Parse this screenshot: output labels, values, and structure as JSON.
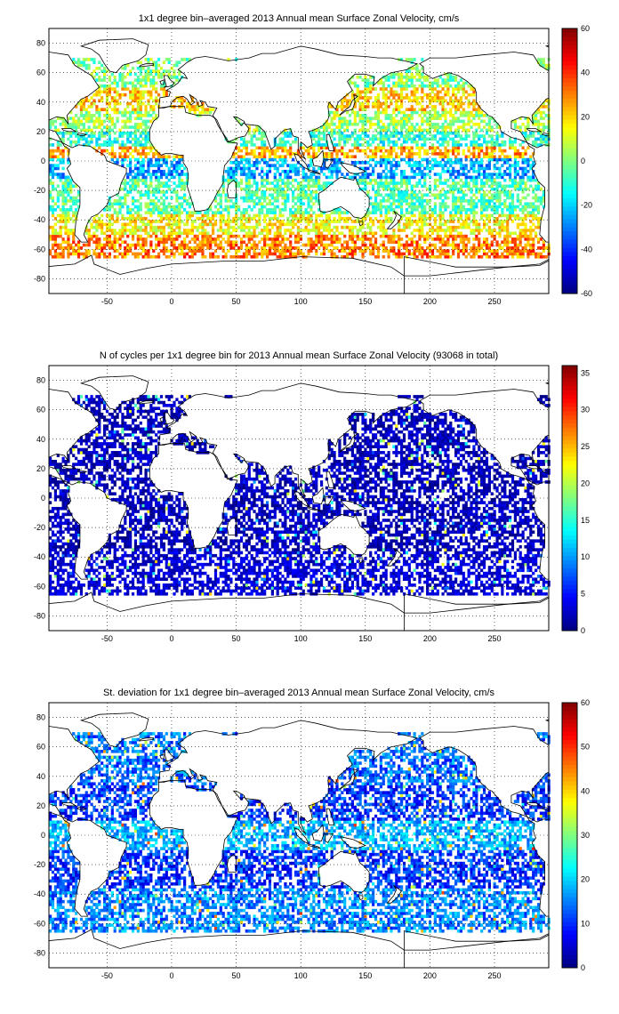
{
  "colors": {
    "land": "#ffffff",
    "coast": "#000000",
    "frame": "#000000",
    "grid": "#000000",
    "colormap": "jet"
  },
  "chart_data": [
    {
      "type": "heatmap",
      "title": "1x1 degree bin–averaged 2013 Annual mean Surface Zonal Velocity, cm/s",
      "xlabel": "",
      "ylabel": "",
      "xlim": [
        -95,
        292
      ],
      "ylim": [
        -90,
        90
      ],
      "xticks": [
        "-50",
        "0",
        "50",
        "100",
        "150",
        "200",
        "250"
      ],
      "xtick_values": [
        -50,
        0,
        50,
        100,
        150,
        200,
        250
      ],
      "yticks": [
        "80",
        "60",
        "40",
        "20",
        "0",
        "-20",
        "-40",
        "-60",
        "-80"
      ],
      "ytick_values": [
        80,
        60,
        40,
        20,
        0,
        -20,
        -40,
        -60,
        -80
      ],
      "grid": "dotted",
      "colorbar": {
        "range": [
          -60,
          60
        ],
        "ticks": [
          "60",
          "40",
          "20",
          "0",
          "-20",
          "-40",
          "-60"
        ],
        "tick_values": [
          60,
          40,
          20,
          0,
          -20,
          -40,
          -60
        ]
      },
      "value_bands": [
        {
          "lat": [
            -65,
            -50
          ],
          "typical": 30
        },
        {
          "lat": [
            -50,
            -35
          ],
          "typical": 15
        },
        {
          "lat": [
            -35,
            -12
          ],
          "typical": -5
        },
        {
          "lat": [
            -12,
            3
          ],
          "typical": -25
        },
        {
          "lat": [
            3,
            10
          ],
          "typical": 25
        },
        {
          "lat": [
            10,
            20
          ],
          "typical": -10
        },
        {
          "lat": [
            20,
            35
          ],
          "typical": 5
        },
        {
          "lat": [
            35,
            50
          ],
          "typical": 20
        },
        {
          "lat": [
            50,
            70
          ],
          "typical": 0
        }
      ]
    },
    {
      "type": "heatmap",
      "title": "N of cycles per 1x1 degree bin for 2013 Annual mean Surface Zonal Velocity (93068 in total)",
      "xlabel": "",
      "ylabel": "",
      "xlim": [
        -95,
        292
      ],
      "ylim": [
        -90,
        90
      ],
      "xticks": [
        "-50",
        "0",
        "50",
        "100",
        "150",
        "200",
        "250"
      ],
      "xtick_values": [
        -50,
        0,
        50,
        100,
        150,
        200,
        250
      ],
      "yticks": [
        "80",
        "60",
        "40",
        "20",
        "0",
        "-20",
        "-40",
        "-60",
        "-80"
      ],
      "ytick_values": [
        80,
        60,
        40,
        20,
        0,
        -20,
        -40,
        -60,
        -80
      ],
      "grid": "dotted",
      "colorbar": {
        "range": [
          0,
          36
        ],
        "ticks": [
          "35",
          "30",
          "25",
          "20",
          "15",
          "10",
          "5",
          "0"
        ],
        "tick_values": [
          35,
          30,
          25,
          20,
          15,
          10,
          5,
          0
        ]
      },
      "total_cycles": 93068,
      "value_bands": [
        {
          "lat": [
            -65,
            -35
          ],
          "typical": 3
        },
        {
          "lat": [
            -35,
            35
          ],
          "typical": 2
        },
        {
          "lat": [
            35,
            70
          ],
          "typical": 2
        }
      ]
    },
    {
      "type": "heatmap",
      "title": "St. deviation for 1x1 degree bin–averaged 2013 Annual mean Surface Zonal Velocity, cm/s",
      "xlabel": "",
      "ylabel": "",
      "xlim": [
        -95,
        292
      ],
      "ylim": [
        -90,
        90
      ],
      "xticks": [
        "-50",
        "0",
        "50",
        "100",
        "150",
        "200",
        "250"
      ],
      "xtick_values": [
        -50,
        0,
        50,
        100,
        150,
        200,
        250
      ],
      "yticks": [
        "80",
        "60",
        "40",
        "20",
        "0",
        "-20",
        "-40",
        "-60",
        "-80"
      ],
      "ytick_values": [
        80,
        60,
        40,
        20,
        0,
        -20,
        -40,
        -60,
        -80
      ],
      "grid": "dotted",
      "colorbar": {
        "range": [
          0,
          60
        ],
        "ticks": [
          "60",
          "50",
          "40",
          "30",
          "20",
          "10",
          "0"
        ],
        "tick_values": [
          60,
          50,
          40,
          30,
          20,
          10,
          0
        ]
      },
      "value_bands": [
        {
          "lat": [
            -65,
            -35
          ],
          "typical": 15
        },
        {
          "lat": [
            -35,
            -10
          ],
          "typical": 10
        },
        {
          "lat": [
            -10,
            10
          ],
          "typical": 18
        },
        {
          "lat": [
            10,
            35
          ],
          "typical": 10
        },
        {
          "lat": [
            35,
            70
          ],
          "typical": 14
        }
      ]
    }
  ]
}
